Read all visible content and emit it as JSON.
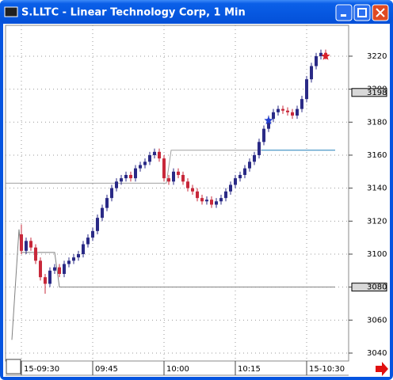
{
  "chart_data": {
    "type": "candlestick",
    "title": "S.LLTC - Linear Technology Corp, 1 Min",
    "x": [
      0,
      1,
      2,
      3,
      4,
      5,
      6,
      7,
      8,
      9,
      10,
      11,
      12,
      13,
      14,
      15,
      16,
      17,
      18,
      19,
      20,
      21,
      22,
      23,
      24,
      25,
      26,
      27,
      28,
      29,
      30,
      31,
      32,
      33,
      34,
      35,
      36,
      37,
      38,
      39,
      40,
      41,
      42,
      43,
      44,
      45,
      46,
      47,
      48,
      49,
      50,
      51,
      52,
      53,
      54,
      55,
      56,
      57,
      58,
      59,
      60,
      61,
      62,
      63,
      64
    ],
    "open": [
      3112,
      3102,
      3108,
      3104,
      3096,
      3086,
      3082,
      3090,
      3092,
      3088,
      3094,
      3096,
      3098,
      3100,
      3106,
      3110,
      3114,
      3122,
      3128,
      3134,
      3140,
      3144,
      3146,
      3148,
      3146,
      3152,
      3154,
      3156,
      3160,
      3162,
      3158,
      3146,
      3144,
      3150,
      3148,
      3144,
      3140,
      3138,
      3134,
      3132,
      3133,
      3130,
      3132,
      3134,
      3138,
      3142,
      3146,
      3148,
      3152,
      3156,
      3160,
      3168,
      3176,
      3182,
      3186,
      3188,
      3187,
      3186,
      3184,
      3188,
      3194,
      3206,
      3214,
      3220,
      3222
    ],
    "high": [
      3118,
      3110,
      3110,
      3106,
      3098,
      3088,
      3092,
      3094,
      3094,
      3096,
      3098,
      3100,
      3102,
      3108,
      3112,
      3116,
      3124,
      3130,
      3136,
      3142,
      3146,
      3148,
      3150,
      3150,
      3154,
      3156,
      3158,
      3162,
      3164,
      3164,
      3160,
      3148,
      3152,
      3152,
      3150,
      3146,
      3142,
      3140,
      3136,
      3135,
      3135,
      3134,
      3136,
      3140,
      3144,
      3148,
      3150,
      3154,
      3158,
      3162,
      3170,
      3178,
      3184,
      3188,
      3190,
      3190,
      3189,
      3188,
      3190,
      3196,
      3208,
      3216,
      3222,
      3224,
      3224
    ],
    "low": [
      3100,
      3100,
      3102,
      3094,
      3084,
      3076,
      3080,
      3088,
      3086,
      3086,
      3092,
      3094,
      3096,
      3098,
      3104,
      3108,
      3112,
      3120,
      3126,
      3132,
      3138,
      3142,
      3144,
      3144,
      3144,
      3150,
      3152,
      3154,
      3158,
      3156,
      3144,
      3142,
      3142,
      3146,
      3142,
      3138,
      3136,
      3132,
      3130,
      3130,
      3128,
      3128,
      3130,
      3132,
      3136,
      3140,
      3144,
      3146,
      3150,
      3154,
      3158,
      3166,
      3174,
      3180,
      3184,
      3185,
      3184,
      3182,
      3182,
      3186,
      3192,
      3204,
      3212,
      3218,
      3218
    ],
    "close": [
      3102,
      3108,
      3104,
      3096,
      3086,
      3082,
      3090,
      3092,
      3088,
      3094,
      3096,
      3098,
      3100,
      3106,
      3110,
      3114,
      3122,
      3128,
      3134,
      3140,
      3144,
      3146,
      3148,
      3146,
      3152,
      3154,
      3156,
      3160,
      3162,
      3158,
      3146,
      3144,
      3150,
      3148,
      3144,
      3140,
      3138,
      3134,
      3132,
      3133,
      3130,
      3132,
      3134,
      3138,
      3142,
      3146,
      3148,
      3152,
      3156,
      3160,
      3168,
      3176,
      3182,
      3186,
      3188,
      3187,
      3186,
      3184,
      3188,
      3194,
      3206,
      3214,
      3220,
      3222,
      3220
    ],
    "up_color": "#2a2a86",
    "down_color": "#c8283a",
    "xlim": [
      -3.33,
      68.83
    ],
    "ylim": [
      3035.2,
      3238.7
    ],
    "xticks": [
      {
        "value": 0,
        "label": "15-09:30"
      },
      {
        "value": 15,
        "label": "09:45"
      },
      {
        "value": 30,
        "label": "10:00"
      },
      {
        "value": 45,
        "label": "10:15"
      },
      {
        "value": 60,
        "label": "15-10:30"
      }
    ],
    "yticks": [
      3040,
      3060,
      3080,
      3100,
      3120,
      3140,
      3160,
      3180,
      3200,
      3220
    ],
    "grid": true,
    "price_flags": [
      3198,
      3080
    ],
    "reference_lines": [
      {
        "color": "#808080",
        "x": [
          -2,
          -0.5,
          0,
          7,
          8,
          66
        ],
        "values": [
          3048,
          3115,
          3101,
          3101,
          3080,
          3080
        ]
      },
      {
        "color": "#a0a0a0",
        "x": [
          -3.3,
          30.5,
          31.5,
          50.5
        ],
        "values": [
          3143,
          3143,
          3163,
          3163
        ]
      },
      {
        "color": "#1f7fb8",
        "x": [
          50.5,
          66
        ],
        "values": [
          3163,
          3163
        ]
      }
    ],
    "markers": [
      {
        "x": 52,
        "value": 3181,
        "color": "#2440d0"
      },
      {
        "x": 64,
        "value": 3220,
        "color": "#d8202a"
      }
    ]
  }
}
